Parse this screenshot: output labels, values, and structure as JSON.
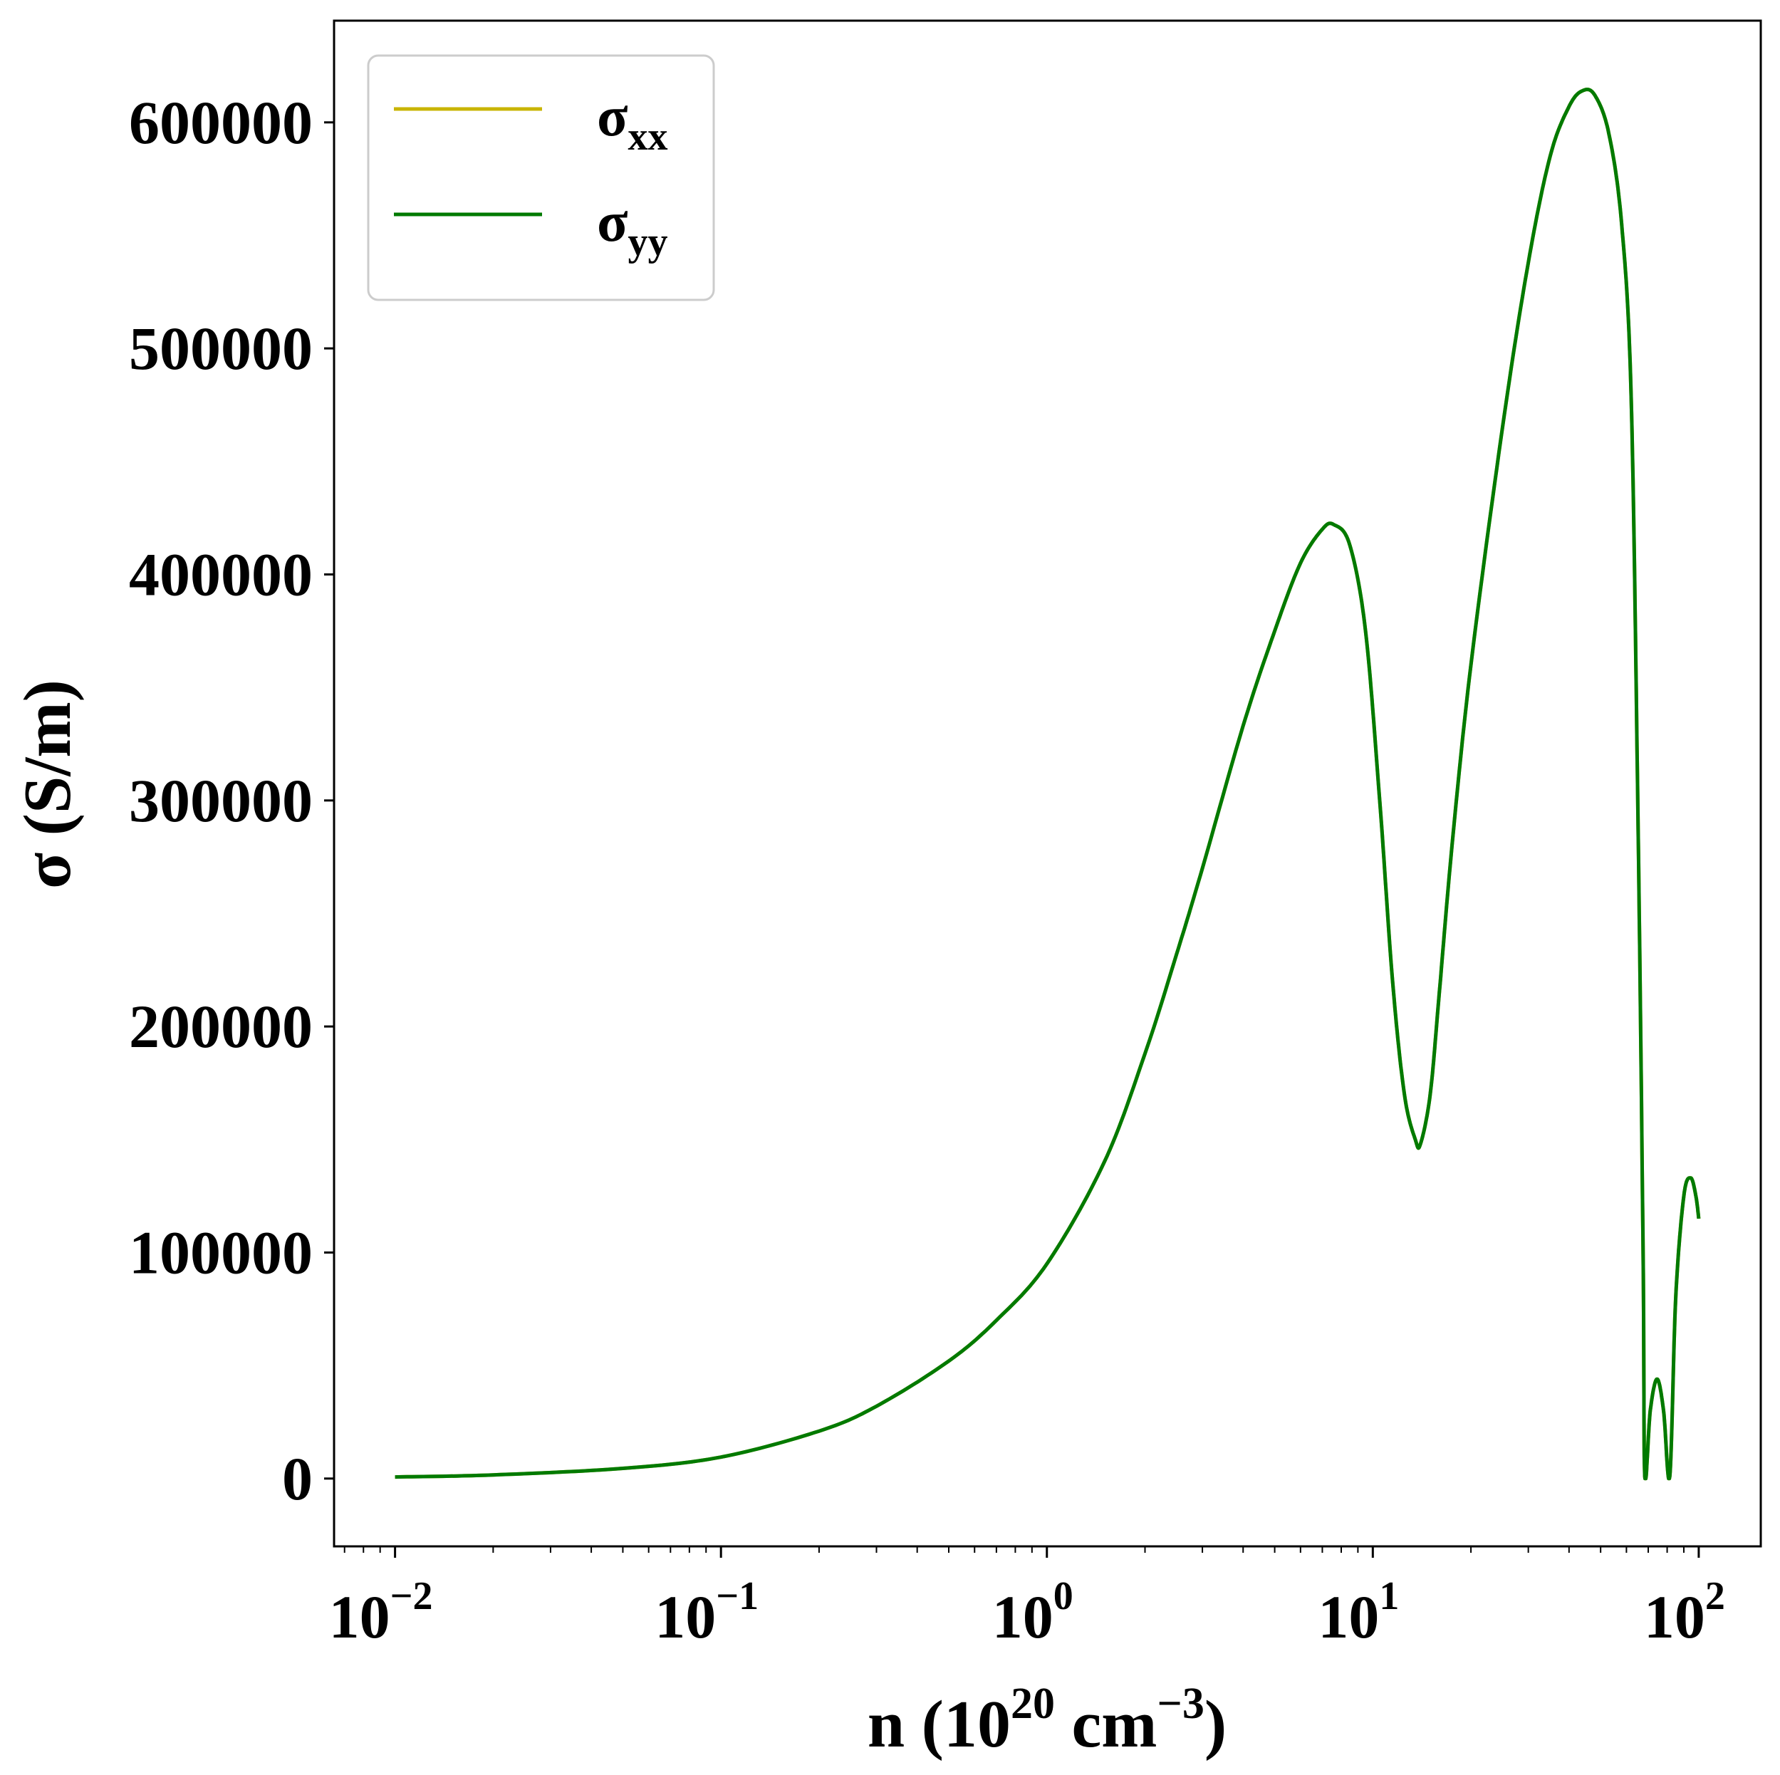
{
  "chart_data": {
    "type": "line",
    "xscale": "log",
    "xlim": [
      0.0065,
      155
    ],
    "ylim": [
      -30000,
      645000
    ],
    "grid": false,
    "xlabel": {
      "prefix": "n (10",
      "sup1": "20",
      "middle": " cm",
      "sup2": "−3",
      "suffix": ")"
    },
    "ylabel": "σ (S/m)",
    "yticks": [
      {
        "value": 0,
        "label": "0"
      },
      {
        "value": 100000,
        "label": "100000"
      },
      {
        "value": 200000,
        "label": "200000"
      },
      {
        "value": 300000,
        "label": "300000"
      },
      {
        "value": 400000,
        "label": "400000"
      },
      {
        "value": 500000,
        "label": "500000"
      },
      {
        "value": 600000,
        "label": "600000"
      }
    ],
    "xticks": [
      {
        "value": 0.01,
        "base": "10",
        "exp": "−2"
      },
      {
        "value": 0.1,
        "base": "10",
        "exp": "−1"
      },
      {
        "value": 1,
        "base": "10",
        "exp": "0"
      },
      {
        "value": 10,
        "base": "10",
        "exp": "1"
      },
      {
        "value": 100,
        "base": "10",
        "exp": "2"
      }
    ],
    "legend_position": "upper-left",
    "series": [
      {
        "name": "σxx",
        "label_main": "σ",
        "label_sub": "xx",
        "color": "#c8b400",
        "points": [
          [
            0.01,
            700
          ],
          [
            0.02,
            1600
          ],
          [
            0.05,
            4500
          ],
          [
            0.1,
            9500
          ],
          [
            0.2,
            21000
          ],
          [
            0.3,
            32000
          ],
          [
            0.5,
            52000
          ],
          [
            0.7,
            70000
          ],
          [
            1.0,
            95000
          ],
          [
            1.5,
            140000
          ],
          [
            2.0,
            188000
          ],
          [
            2.5,
            232000
          ],
          [
            3.0,
            270000
          ],
          [
            4.0,
            333000
          ],
          [
            5.0,
            375000
          ],
          [
            6.0,
            405000
          ],
          [
            7.0,
            420000
          ],
          [
            7.6,
            422000
          ],
          [
            8.5,
            413000
          ],
          [
            9.5,
            375000
          ],
          [
            10.5,
            300000
          ],
          [
            11.5,
            220000
          ],
          [
            12.5,
            170000
          ],
          [
            13.5,
            150000
          ],
          [
            14.0,
            148000
          ],
          [
            15.0,
            170000
          ],
          [
            16.0,
            215000
          ],
          [
            17.5,
            280000
          ],
          [
            20.0,
            360000
          ],
          [
            25.0,
            465000
          ],
          [
            30.0,
            538000
          ],
          [
            35.0,
            585000
          ],
          [
            40.0,
            607000
          ],
          [
            44.0,
            614000
          ],
          [
            48.0,
            612000
          ],
          [
            53.0,
            595000
          ],
          [
            58.0,
            555000
          ],
          [
            62.0,
            480000
          ],
          [
            65.0,
            300000
          ],
          [
            67.5,
            100000
          ],
          [
            68.3,
            1000
          ],
          [
            71.0,
            30000
          ],
          [
            74.5,
            44000
          ],
          [
            78.0,
            30000
          ],
          [
            81.5,
            1000
          ],
          [
            85.0,
            80000
          ],
          [
            90.0,
            125000
          ],
          [
            94.5,
            133000
          ],
          [
            98.0,
            125000
          ],
          [
            100.0,
            115000
          ]
        ]
      },
      {
        "name": "σyy",
        "label_main": "σ",
        "label_sub": "yy",
        "color": "#007a00",
        "points": [
          [
            0.01,
            700
          ],
          [
            0.02,
            1600
          ],
          [
            0.05,
            4500
          ],
          [
            0.1,
            9500
          ],
          [
            0.2,
            21000
          ],
          [
            0.3,
            32000
          ],
          [
            0.5,
            52000
          ],
          [
            0.7,
            70000
          ],
          [
            1.0,
            95000
          ],
          [
            1.5,
            140000
          ],
          [
            2.0,
            188000
          ],
          [
            2.5,
            232000
          ],
          [
            3.0,
            270000
          ],
          [
            4.0,
            333000
          ],
          [
            5.0,
            375000
          ],
          [
            6.0,
            405000
          ],
          [
            7.0,
            420000
          ],
          [
            7.6,
            422000
          ],
          [
            8.5,
            413000
          ],
          [
            9.5,
            375000
          ],
          [
            10.5,
            300000
          ],
          [
            11.5,
            220000
          ],
          [
            12.5,
            170000
          ],
          [
            13.5,
            150000
          ],
          [
            14.0,
            148000
          ],
          [
            15.0,
            170000
          ],
          [
            16.0,
            215000
          ],
          [
            17.5,
            280000
          ],
          [
            20.0,
            360000
          ],
          [
            25.0,
            465000
          ],
          [
            30.0,
            538000
          ],
          [
            35.0,
            585000
          ],
          [
            40.0,
            607000
          ],
          [
            44.0,
            614000
          ],
          [
            48.0,
            612000
          ],
          [
            53.0,
            595000
          ],
          [
            58.0,
            555000
          ],
          [
            62.0,
            480000
          ],
          [
            65.0,
            300000
          ],
          [
            67.5,
            100000
          ],
          [
            68.3,
            1000
          ],
          [
            71.0,
            30000
          ],
          [
            74.5,
            44000
          ],
          [
            78.0,
            30000
          ],
          [
            81.5,
            1000
          ],
          [
            85.0,
            80000
          ],
          [
            90.0,
            125000
          ],
          [
            94.5,
            133000
          ],
          [
            98.0,
            125000
          ],
          [
            100.0,
            115000
          ]
        ]
      }
    ]
  }
}
